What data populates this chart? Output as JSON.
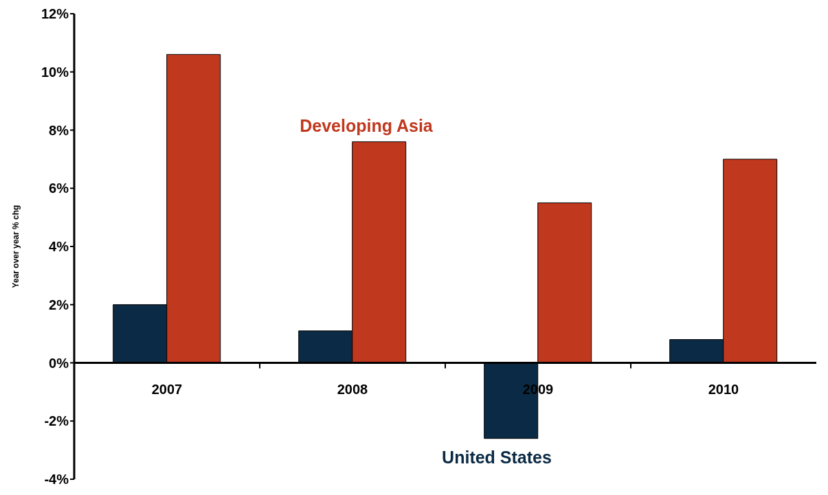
{
  "chart_data": {
    "type": "bar",
    "ylabel": "Year over year % chg",
    "categories": [
      "2007",
      "2008",
      "2009",
      "2010"
    ],
    "series": [
      {
        "name": "United States",
        "color": "#0b2a45",
        "values": [
          2.0,
          1.1,
          -2.6,
          0.8
        ]
      },
      {
        "name": "Developing Asia",
        "color": "#c0381e",
        "values": [
          10.6,
          7.6,
          5.5,
          7.0
        ]
      }
    ],
    "ylim": [
      -4,
      12
    ],
    "yticks": [
      {
        "value": -4,
        "label": "-4%"
      },
      {
        "value": -2,
        "label": "-2%"
      },
      {
        "value": 0,
        "label": "0%"
      },
      {
        "value": 2,
        "label": "2%"
      },
      {
        "value": 4,
        "label": "4%"
      },
      {
        "value": 6,
        "label": "6%"
      },
      {
        "value": 8,
        "label": "8%"
      },
      {
        "value": 10,
        "label": "10%"
      },
      {
        "value": 12,
        "label": "12%"
      }
    ],
    "grid": false,
    "legend": false
  }
}
